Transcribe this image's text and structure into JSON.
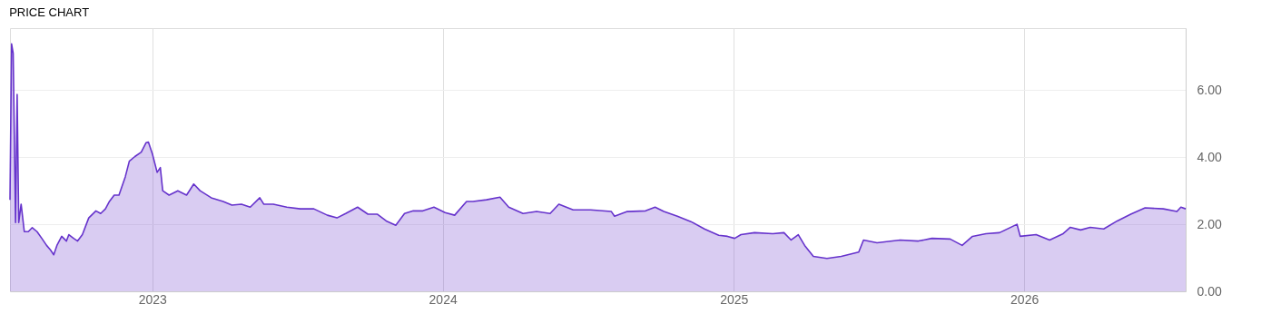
{
  "chart_data": {
    "type": "area",
    "title": "PRICE CHART",
    "x": [
      "2022-07-06",
      "2022-07-08",
      "2022-07-10",
      "2022-07-13",
      "2022-07-15",
      "2022-07-17",
      "2022-07-20",
      "2022-07-24",
      "2022-07-29",
      "2022-08-03",
      "2022-08-09",
      "2022-08-15",
      "2022-08-21",
      "2022-08-26",
      "2022-08-30",
      "2022-09-03",
      "2022-09-09",
      "2022-09-15",
      "2022-09-18",
      "2022-09-24",
      "2022-09-29",
      "2022-10-05",
      "2022-10-13",
      "2022-10-22",
      "2022-10-28",
      "2022-11-03",
      "2022-11-08",
      "2022-11-14",
      "2022-11-20",
      "2022-11-28",
      "2022-12-03",
      "2022-12-10",
      "2022-12-18",
      "2022-12-24",
      "2022-12-27",
      "2023-01-01",
      "2023-01-07",
      "2023-01-11",
      "2023-01-14",
      "2023-01-22",
      "2023-02-02",
      "2023-02-13",
      "2023-02-22",
      "2023-03-02",
      "2023-03-16",
      "2023-03-31",
      "2023-04-11",
      "2023-04-23",
      "2023-05-04",
      "2023-05-16",
      "2023-05-21",
      "2023-06-02",
      "2023-06-19",
      "2023-07-06",
      "2023-07-23",
      "2023-08-09",
      "2023-08-21",
      "2023-09-01",
      "2023-09-16",
      "2023-09-29",
      "2023-10-11",
      "2023-10-22",
      "2023-11-03",
      "2023-11-14",
      "2023-11-25",
      "2023-12-07",
      "2023-12-21",
      "2024-01-04",
      "2024-01-16",
      "2024-01-31",
      "2024-02-08",
      "2024-02-25",
      "2024-03-13",
      "2024-03-24",
      "2024-04-11",
      "2024-04-28",
      "2024-05-15",
      "2024-05-26",
      "2024-06-13",
      "2024-07-05",
      "2024-07-31",
      "2024-08-04",
      "2024-08-20",
      "2024-09-12",
      "2024-09-24",
      "2024-10-05",
      "2024-10-22",
      "2024-11-08",
      "2024-11-25",
      "2024-12-13",
      "2024-12-24",
      "2025-01-02",
      "2025-01-10",
      "2025-01-27",
      "2025-02-19",
      "2025-03-05",
      "2025-03-14",
      "2025-03-23",
      "2025-03-31",
      "2025-04-11",
      "2025-04-28",
      "2025-05-16",
      "2025-06-07",
      "2025-06-13",
      "2025-06-30",
      "2025-07-29",
      "2025-08-21",
      "2025-09-07",
      "2025-09-30",
      "2025-10-15",
      "2025-10-28",
      "2025-11-14",
      "2025-12-01",
      "2025-12-23",
      "2025-12-27",
      "2026-01-16",
      "2026-02-02",
      "2026-02-19",
      "2026-02-28",
      "2026-03-13",
      "2026-03-25",
      "2026-04-11",
      "2026-04-28",
      "2026-05-15",
      "2026-06-02",
      "2026-06-25",
      "2026-07-12",
      "2026-07-17",
      "2026-07-23"
    ],
    "series": [
      {
        "color": "#6633cc",
        "values": [
          2.73,
          7.38,
          7.1,
          2.05,
          5.87,
          2.05,
          2.6,
          1.78,
          1.78,
          1.9,
          1.78,
          1.58,
          1.37,
          1.23,
          1.09,
          1.37,
          1.64,
          1.5,
          1.69,
          1.58,
          1.5,
          1.69,
          2.19,
          2.4,
          2.32,
          2.46,
          2.68,
          2.87,
          2.87,
          3.42,
          3.88,
          4.02,
          4.15,
          4.43,
          4.45,
          4.1,
          3.55,
          3.69,
          3.0,
          2.87,
          3.0,
          2.87,
          3.2,
          3.0,
          2.79,
          2.68,
          2.57,
          2.6,
          2.51,
          2.79,
          2.6,
          2.6,
          2.51,
          2.46,
          2.46,
          2.27,
          2.19,
          2.32,
          2.51,
          2.3,
          2.3,
          2.1,
          1.97,
          2.32,
          2.4,
          2.4,
          2.51,
          2.35,
          2.27,
          2.68,
          2.68,
          2.73,
          2.81,
          2.51,
          2.32,
          2.38,
          2.32,
          2.6,
          2.43,
          2.43,
          2.38,
          2.24,
          2.38,
          2.4,
          2.51,
          2.38,
          2.24,
          2.08,
          1.86,
          1.67,
          1.64,
          1.58,
          1.69,
          1.75,
          1.72,
          1.75,
          1.53,
          1.69,
          1.37,
          1.04,
          0.98,
          1.04,
          1.17,
          1.53,
          1.45,
          1.53,
          1.5,
          1.58,
          1.56,
          1.37,
          1.64,
          1.72,
          1.75,
          2.0,
          1.64,
          1.69,
          1.53,
          1.72,
          1.91,
          1.83,
          1.91,
          1.86,
          2.1,
          2.3,
          2.49,
          2.46,
          2.38,
          2.51,
          2.46
        ]
      }
    ],
    "xlim": [
      "2022-07-06",
      "2026-07-23"
    ],
    "xticks": [
      {
        "value": "2023-01-01",
        "label": "2023"
      },
      {
        "value": "2024-01-01",
        "label": "2024"
      },
      {
        "value": "2025-01-01",
        "label": "2025"
      },
      {
        "value": "2026-01-01",
        "label": "2026"
      }
    ],
    "ylim": [
      0,
      7.85
    ],
    "yticks": [
      {
        "value": 0,
        "label": "0.00"
      },
      {
        "value": 2,
        "label": "2.00"
      },
      {
        "value": 4,
        "label": "4.00"
      },
      {
        "value": 6,
        "label": "6.00"
      }
    ],
    "grid": true
  }
}
